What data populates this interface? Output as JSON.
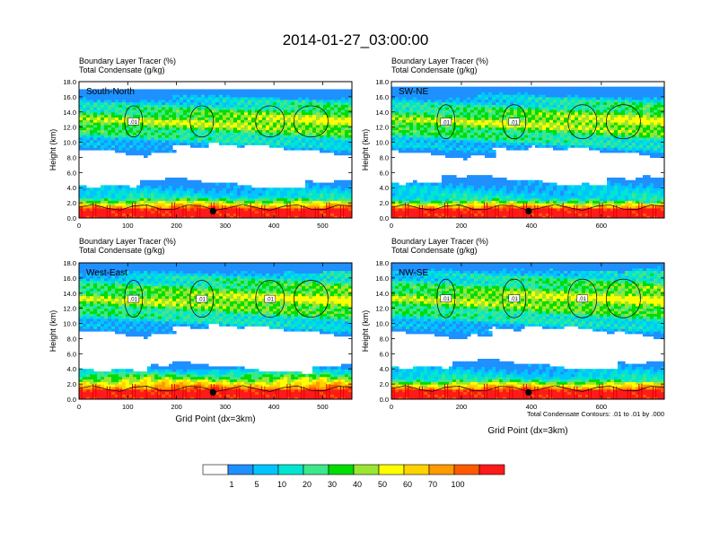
{
  "figure": {
    "title": "2014-01-27_03:00:00",
    "note": "Total Condensate Contours: .01 to .01 by .000"
  },
  "colorbar": {
    "colors": [
      "#ffffff",
      "#1e90ff",
      "#00c5ff",
      "#00e5d0",
      "#3ce88c",
      "#00dd00",
      "#9ae632",
      "#ffff00",
      "#ffd200",
      "#ff9a00",
      "#ff5a00",
      "#ff1a1a"
    ],
    "tick_labels": [
      "1",
      "5",
      "10",
      "20",
      "30",
      "40",
      "50",
      "60",
      "70",
      "100"
    ]
  },
  "chart_data": [
    {
      "type": "heatmap",
      "panel_label": "South-North",
      "subtitle_line1": "Boundary Layer Tracer    (%)",
      "subtitle_line2": "Total Condensate    (g/kg)",
      "ylabel": "Height (km)",
      "xlabel": "",
      "xlim": [
        0,
        560
      ],
      "ylim": [
        0,
        18
      ],
      "x_ticks": [
        "0",
        "100",
        "200",
        "300",
        "400",
        "500"
      ],
      "x_tick_values": [
        0,
        100,
        200,
        300,
        400,
        500
      ],
      "y_ticks": [
        "0.0",
        "2.0",
        "4.0",
        "6.0",
        "8.0",
        "10.0",
        "12.0",
        "14.0",
        "16.0",
        "18.0"
      ],
      "y_tick_values": [
        0,
        2,
        4,
        6,
        8,
        10,
        12,
        14,
        16,
        18
      ],
      "upper_band_km": [
        9.5,
        16.0
      ],
      "gap_km": [
        4.6,
        9.2
      ],
      "boundary_layer_top_km": 2.8,
      "contour_labels": [
        ".01"
      ],
      "marker_x": 275
    },
    {
      "type": "heatmap",
      "panel_label": "SW-NE",
      "subtitle_line1": "Boundary Layer Tracer    (%)",
      "subtitle_line2": "Total Condensate    (g/kg)",
      "ylabel": "Height (km)",
      "xlabel": "",
      "xlim": [
        0,
        780
      ],
      "ylim": [
        0,
        18
      ],
      "x_ticks": [
        "0",
        "200",
        "400",
        "600"
      ],
      "x_tick_values": [
        0,
        200,
        400,
        600
      ],
      "y_ticks": [
        "0.0",
        "2.0",
        "4.0",
        "6.0",
        "8.0",
        "10.0",
        "12.0",
        "14.0",
        "16.0",
        "18.0"
      ],
      "y_tick_values": [
        0,
        2,
        4,
        6,
        8,
        10,
        12,
        14,
        16,
        18
      ],
      "upper_band_km": [
        9.2,
        16.2
      ],
      "gap_km": [
        5.0,
        8.8
      ],
      "boundary_layer_top_km": 2.6,
      "contour_labels": [
        ".01",
        ".01"
      ],
      "marker_x": 392
    },
    {
      "type": "heatmap",
      "panel_label": "West-East",
      "subtitle_line1": "Boundary Layer Tracer    (%)",
      "subtitle_line2": "Total Condensate    (g/kg)",
      "ylabel": "Height (km)",
      "xlabel": "Grid Point (dx=3km)",
      "xlim": [
        0,
        560
      ],
      "ylim": [
        0,
        18
      ],
      "x_ticks": [
        "0",
        "100",
        "200",
        "300",
        "400",
        "500"
      ],
      "x_tick_values": [
        0,
        100,
        200,
        300,
        400,
        500
      ],
      "y_ticks": [
        "0.0",
        "2.0",
        "4.0",
        "6.0",
        "8.0",
        "10.0",
        "12.0",
        "14.0",
        "16.0",
        "18.0"
      ],
      "y_tick_values": [
        0,
        2,
        4,
        6,
        8,
        10,
        12,
        14,
        16,
        18
      ],
      "upper_band_km": [
        9.5,
        17.0
      ],
      "gap_km": [
        4.2,
        9.2
      ],
      "boundary_layer_top_km": 3.6,
      "contour_labels": [
        ".01",
        ".01",
        ".01"
      ],
      "marker_x": 275
    },
    {
      "type": "heatmap",
      "panel_label": "NW-SE",
      "subtitle_line1": "Boundary Layer Tracer    (%)",
      "subtitle_line2": "Total Condensate    (g/kg)",
      "ylabel": "Height (km)",
      "xlabel": "Grid Point (dx=3km)",
      "xlim": [
        0,
        780
      ],
      "ylim": [
        0,
        18
      ],
      "x_ticks": [
        "0",
        "200",
        "400",
        "600"
      ],
      "x_tick_values": [
        0,
        200,
        400,
        600
      ],
      "y_ticks": [
        "0.0",
        "2.0",
        "4.0",
        "6.0",
        "8.0",
        "10.0",
        "12.0",
        "14.0",
        "16.0",
        "18.0"
      ],
      "y_tick_values": [
        0,
        2,
        4,
        6,
        8,
        10,
        12,
        14,
        16,
        18
      ],
      "upper_band_km": [
        9.4,
        17.2
      ],
      "gap_km": [
        4.6,
        9.0
      ],
      "boundary_layer_top_km": 2.8,
      "contour_labels": [
        ".01",
        ".01",
        ".01"
      ],
      "marker_x": 392
    }
  ]
}
